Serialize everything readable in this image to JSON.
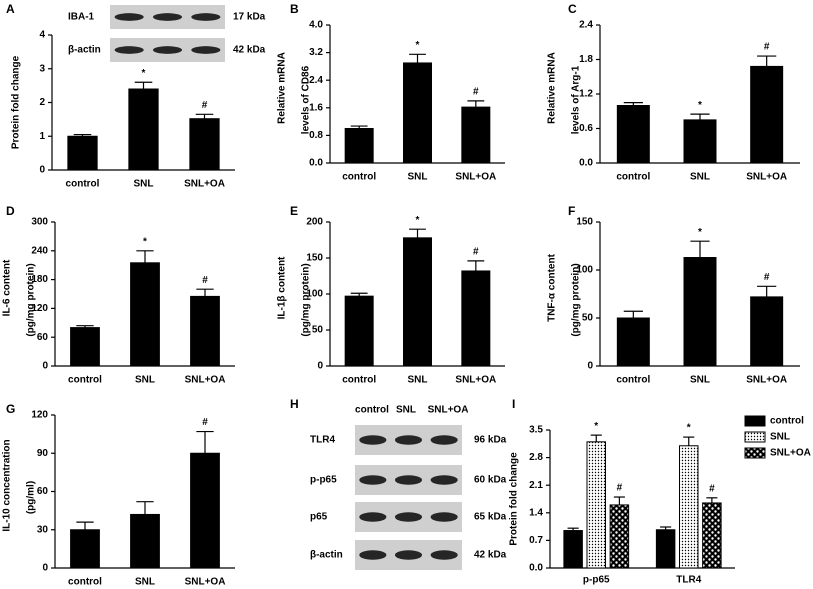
{
  "chart_data": [
    {
      "type": "bar",
      "panel": "A",
      "ylabel": [
        "Protein fold change"
      ],
      "categories": [
        "control",
        "SNL",
        "SNL+OA"
      ],
      "values": [
        1.0,
        2.4,
        1.52
      ],
      "errors": [
        0.05,
        0.2,
        0.13
      ],
      "annotations": [
        null,
        "*",
        "#"
      ],
      "color": "#000000",
      "ylim": [
        0,
        4
      ],
      "yticks": [
        0,
        1,
        2,
        3,
        4
      ],
      "blot": {
        "rows": [
          "IBA-1",
          "β-actin"
        ],
        "sizes": [
          "17 kDa",
          "42 kDa"
        ]
      }
    },
    {
      "type": "bar",
      "panel": "B",
      "ylabel": [
        "Relative  mRNA",
        "levels of CD86"
      ],
      "categories": [
        "control",
        "SNL",
        "SNL+OA"
      ],
      "values": [
        1.0,
        2.9,
        1.62
      ],
      "errors": [
        0.07,
        0.25,
        0.18
      ],
      "annotations": [
        null,
        "*",
        "#"
      ],
      "color": "#000000",
      "ylim": [
        0,
        4
      ],
      "yticks": [
        {
          "value": 0,
          "label": "0.0"
        },
        0.8,
        1.6,
        2.4,
        3.2,
        {
          "value": 4,
          "label": "4.0"
        }
      ]
    },
    {
      "type": "bar",
      "panel": "C",
      "ylabel": [
        "Relative  mRNA",
        "levels of Arg-1"
      ],
      "categories": [
        "control",
        "SNL",
        "SNL+OA"
      ],
      "values": [
        1.0,
        0.75,
        1.68
      ],
      "errors": [
        0.05,
        0.1,
        0.18
      ],
      "annotations": [
        null,
        "*",
        "#"
      ],
      "color": "#000000",
      "ylim": [
        0,
        2.4
      ],
      "yticks": [
        {
          "value": 0,
          "label": "0.0"
        },
        0.6,
        1.2,
        1.8,
        2.4
      ]
    },
    {
      "type": "bar",
      "panel": "D",
      "ylabel": [
        "IL-6 content",
        "(pg/mg protein)"
      ],
      "categories": [
        "control",
        "SNL",
        "SNL+OA"
      ],
      "values": [
        80,
        215,
        145
      ],
      "errors": [
        4,
        25,
        15
      ],
      "annotations": [
        null,
        "*",
        "#"
      ],
      "color": "#000000",
      "ylim": [
        0,
        300
      ],
      "yticks": [
        0,
        60,
        120,
        180,
        240,
        300
      ]
    },
    {
      "type": "bar",
      "panel": "E",
      "ylabel": [
        "IL-1β content",
        "(pg/mg protein)"
      ],
      "categories": [
        "control",
        "SNL",
        "SNL+OA"
      ],
      "values": [
        97,
        178,
        132
      ],
      "errors": [
        4,
        12,
        14
      ],
      "annotations": [
        null,
        "*",
        "#"
      ],
      "color": "#000000",
      "ylim": [
        0,
        200
      ],
      "yticks": [
        0,
        50,
        100,
        150,
        200
      ]
    },
    {
      "type": "bar",
      "panel": "F",
      "ylabel": [
        "TNF-α content",
        "(pg/mg protein)"
      ],
      "categories": [
        "control",
        "SNL",
        "SNL+OA"
      ],
      "values": [
        50,
        113,
        72
      ],
      "errors": [
        7,
        17,
        11
      ],
      "annotations": [
        null,
        "*",
        "#"
      ],
      "color": "#000000",
      "ylim": [
        0,
        150
      ],
      "yticks": [
        0,
        50,
        100,
        150
      ]
    },
    {
      "type": "bar",
      "panel": "G",
      "ylabel": [
        "IL-10 concentration",
        "(pg/ml)"
      ],
      "categories": [
        "control",
        "SNL",
        "SNL+OA"
      ],
      "values": [
        30,
        42,
        90
      ],
      "errors": [
        6,
        10,
        17
      ],
      "annotations": [
        null,
        null,
        "#"
      ],
      "color": "#000000",
      "ylim": [
        0,
        120
      ],
      "yticks": [
        0,
        30,
        60,
        90,
        120
      ]
    },
    {
      "type": "blot",
      "panel": "H",
      "columns": [
        "control",
        "SNL",
        "SNL+OA"
      ],
      "rows": [
        "TLR4",
        "p-p65",
        "p65",
        "β-actin"
      ],
      "sizes": [
        "96 kDa",
        "60 kDa",
        "65 kDa",
        "42 kDa"
      ]
    },
    {
      "type": "grouped-bar",
      "panel": "I",
      "ylabel": [
        "Protein fold change"
      ],
      "categories": [
        "p-p65",
        "TLR4"
      ],
      "ylim": [
        0,
        3.5
      ],
      "yticks": [
        {
          "value": 0,
          "label": "0.0"
        },
        0.7,
        1.4,
        2.1,
        2.8,
        3.5
      ],
      "series": [
        {
          "name": "control",
          "fill": "solid",
          "values": [
            0.95,
            0.97
          ],
          "errors": [
            0.06,
            0.07
          ],
          "annotations": [
            null,
            null
          ]
        },
        {
          "name": "SNL",
          "fill": "dots",
          "values": [
            3.2,
            3.1
          ],
          "errors": [
            0.17,
            0.22
          ],
          "annotations": [
            "*",
            "*"
          ]
        },
        {
          "name": "SNL+OA",
          "fill": "checks",
          "values": [
            1.6,
            1.65
          ],
          "errors": [
            0.2,
            0.13
          ],
          "annotations": [
            "#",
            "#"
          ]
        }
      ]
    }
  ]
}
